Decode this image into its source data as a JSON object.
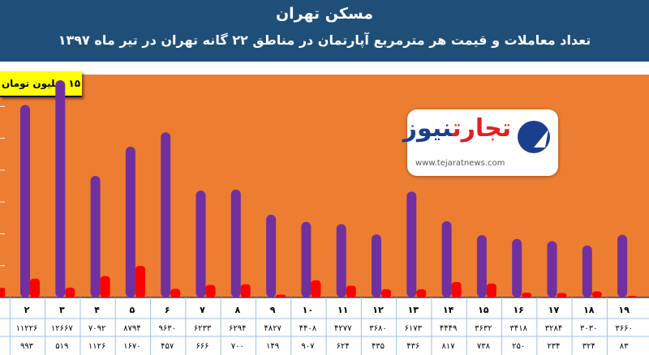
{
  "header": {
    "title": "مسکن تهران",
    "subtitle": "تعداد معاملات و قیمت هر مترمربع آپارتمان در مناطق ۲۲ گانه تهران در تیر ماه ۱۳۹۷"
  },
  "badge": "۱۵ میلیون تومان",
  "logo": {
    "text_red": "تجارت",
    "text_blue": "نیوز",
    "url": "www.tejaratnews.com"
  },
  "colors": {
    "header": "#1f4e79",
    "plot_bg": "#ed7d31",
    "price_bar": "#7030a0",
    "count_bar": "#ff0000"
  },
  "chart_data": {
    "type": "bar",
    "title": "تعداد معاملات و قیمت هر مترمربع آپارتمان در مناطق ۲۲ گانه تهران در تیر ماه ۱۳۹۷",
    "categories": [
      "۲",
      "۳",
      "۴",
      "۵",
      "۶",
      "۷",
      "۸",
      "۹",
      "۱۰",
      "۱۱",
      "۱۲",
      "۱۳",
      "۱۴",
      "۱۵",
      "۱۶",
      "۱۷",
      "۱۸",
      "۱۹"
    ],
    "series": [
      {
        "name": "",
        "values": [
          11226,
          12667,
          7092,
          8794,
          9630,
          6233,
          6294,
          4827,
          4408,
          4277,
          3680,
          6173,
          4449,
          3632,
          3418,
          3284,
          3030,
          3660
        ],
        "labels": [
          "۱۱۲۲۶",
          "۱۲۶۶۷",
          "۷۰۹۲",
          "۸۷۹۴",
          "۹۶۳۰",
          "۶۲۳۳",
          "۶۲۹۴",
          "۴۸۲۷",
          "۴۴۰۸",
          "۴۲۷۷",
          "۳۶۸۰",
          "۶۱۷۳",
          "۴۴۴۹",
          "۳۶۳۲",
          "۳۴۱۸",
          "۳۲۸۴",
          "۳۰۳۰",
          "۳۶۶۰"
        ]
      },
      {
        "name": "",
        "values": [
          993,
          519,
          1126,
          1670,
          457,
          666,
          700,
          149,
          907,
          624,
          435,
          436,
          817,
          738,
          250,
          234,
          324,
          83
        ],
        "labels": [
          "۹۹۳",
          "۵۱۹",
          "۱۱۲۶",
          "۱۶۷۰",
          "۴۵۷",
          "۶۶۶",
          "۷۰۰",
          "۱۴۹",
          "۹۰۷",
          "۶۲۴",
          "۴۳۵",
          "۴۳۶",
          "۸۱۷",
          "۷۳۸",
          "۲۵۰",
          "۲۳۴",
          "۳۲۴",
          "۸۳"
        ]
      }
    ]
  }
}
